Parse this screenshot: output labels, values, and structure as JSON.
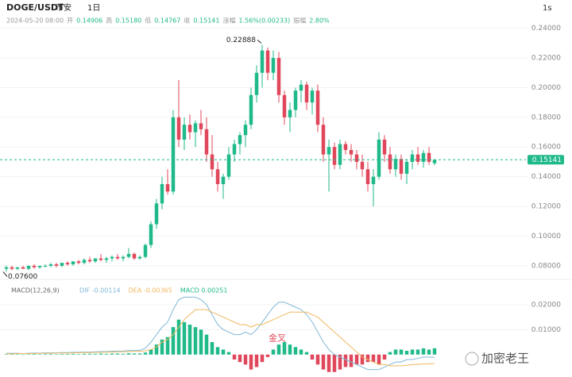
{
  "header": {
    "symbol": "DOGE/USDT",
    "exchange": "币安",
    "interval": "1日",
    "interval_button": "1s",
    "info": [
      "2024-05-20 08:00",
      "开",
      "0.14906",
      "高",
      "0.15180",
      "低",
      "0.14767",
      "收",
      "0.15141",
      "涨幅",
      "1.56%(0.00233)",
      "振幅",
      "2.80%"
    ]
  },
  "watermark": "加密老王",
  "chart_data": [
    {
      "type": "candlestick",
      "up_color": "#1fb98a",
      "down_color": "#e0475b",
      "ylim": [
        0.073,
        0.251
      ],
      "yticks": [
        {
          "value": 0.24,
          "label": "0.24000"
        },
        {
          "value": 0.22,
          "label": "0.22000"
        },
        {
          "value": 0.2,
          "label": "0.20000"
        },
        {
          "value": 0.18,
          "label": "0.18000"
        },
        {
          "value": 0.16,
          "label": "0.16000"
        },
        {
          "value": 0.14,
          "label": "0.14000"
        },
        {
          "value": 0.12,
          "label": "0.12000"
        },
        {
          "value": 0.1,
          "label": "0.10000"
        },
        {
          "value": 0.08,
          "label": "0.08000"
        }
      ],
      "last_price": {
        "value": 0.15141,
        "label": "0.15141"
      },
      "low_label": {
        "value": 0.076,
        "label": "0.07600"
      },
      "ohlc": [
        [
          0.078,
          0.08,
          0.076,
          0.079
        ],
        [
          0.079,
          0.08,
          0.077,
          0.078
        ],
        [
          0.078,
          0.079,
          0.077,
          0.079
        ],
        [
          0.079,
          0.08,
          0.078,
          0.078
        ],
        [
          0.078,
          0.08,
          0.077,
          0.08
        ],
        [
          0.08,
          0.081,
          0.078,
          0.079
        ],
        [
          0.079,
          0.08,
          0.078,
          0.08
        ],
        [
          0.08,
          0.081,
          0.079,
          0.08
        ],
        [
          0.08,
          0.082,
          0.079,
          0.081
        ],
        [
          0.081,
          0.082,
          0.079,
          0.08
        ],
        [
          0.08,
          0.082,
          0.079,
          0.082
        ],
        [
          0.082,
          0.083,
          0.08,
          0.081
        ],
        [
          0.081,
          0.083,
          0.08,
          0.083
        ],
        [
          0.083,
          0.084,
          0.081,
          0.082
        ],
        [
          0.082,
          0.085,
          0.081,
          0.084
        ],
        [
          0.084,
          0.086,
          0.082,
          0.083
        ],
        [
          0.083,
          0.085,
          0.082,
          0.085
        ],
        [
          0.085,
          0.088,
          0.083,
          0.084
        ],
        [
          0.084,
          0.086,
          0.082,
          0.085
        ],
        [
          0.085,
          0.087,
          0.083,
          0.086
        ],
        [
          0.086,
          0.088,
          0.084,
          0.085
        ],
        [
          0.085,
          0.087,
          0.083,
          0.086
        ],
        [
          0.086,
          0.092,
          0.085,
          0.088
        ],
        [
          0.088,
          0.089,
          0.084,
          0.085
        ],
        [
          0.085,
          0.087,
          0.084,
          0.086
        ],
        [
          0.086,
          0.095,
          0.085,
          0.094
        ],
        [
          0.094,
          0.11,
          0.092,
          0.108
        ],
        [
          0.108,
          0.125,
          0.105,
          0.122
        ],
        [
          0.122,
          0.14,
          0.118,
          0.135
        ],
        [
          0.135,
          0.145,
          0.128,
          0.13
        ],
        [
          0.13,
          0.185,
          0.128,
          0.18
        ],
        [
          0.18,
          0.205,
          0.16,
          0.165
        ],
        [
          0.165,
          0.18,
          0.158,
          0.175
        ],
        [
          0.175,
          0.182,
          0.165,
          0.17
        ],
        [
          0.17,
          0.178,
          0.16,
          0.176
        ],
        [
          0.176,
          0.185,
          0.168,
          0.172
        ],
        [
          0.172,
          0.18,
          0.15,
          0.155
        ],
        [
          0.155,
          0.168,
          0.14,
          0.145
        ],
        [
          0.145,
          0.15,
          0.13,
          0.135
        ],
        [
          0.135,
          0.142,
          0.125,
          0.14
        ],
        [
          0.14,
          0.16,
          0.138,
          0.155
        ],
        [
          0.155,
          0.165,
          0.15,
          0.162
        ],
        [
          0.162,
          0.17,
          0.155,
          0.168
        ],
        [
          0.168,
          0.178,
          0.16,
          0.175
        ],
        [
          0.175,
          0.2,
          0.172,
          0.195
        ],
        [
          0.195,
          0.215,
          0.19,
          0.21
        ],
        [
          0.21,
          0.22888,
          0.2,
          0.225
        ],
        [
          0.225,
          0.227,
          0.205,
          0.21
        ],
        [
          0.21,
          0.225,
          0.205,
          0.22
        ],
        [
          0.22,
          0.224,
          0.19,
          0.195
        ],
        [
          0.195,
          0.198,
          0.175,
          0.18
        ],
        [
          0.18,
          0.19,
          0.17,
          0.185
        ],
        [
          0.185,
          0.2,
          0.18,
          0.198
        ],
        [
          0.198,
          0.205,
          0.19,
          0.202
        ],
        [
          0.202,
          0.204,
          0.185,
          0.19
        ],
        [
          0.19,
          0.2,
          0.182,
          0.198
        ],
        [
          0.198,
          0.202,
          0.17,
          0.175
        ],
        [
          0.175,
          0.18,
          0.15,
          0.155
        ],
        [
          0.155,
          0.165,
          0.13,
          0.16
        ],
        [
          0.16,
          0.163,
          0.145,
          0.148
        ],
        [
          0.148,
          0.165,
          0.145,
          0.162
        ],
        [
          0.162,
          0.164,
          0.155,
          0.158
        ],
        [
          0.158,
          0.162,
          0.15,
          0.155
        ],
        [
          0.155,
          0.158,
          0.145,
          0.15
        ],
        [
          0.15,
          0.155,
          0.14,
          0.145
        ],
        [
          0.145,
          0.15,
          0.13,
          0.135
        ],
        [
          0.135,
          0.145,
          0.12,
          0.14
        ],
        [
          0.14,
          0.17,
          0.138,
          0.165
        ],
        [
          0.165,
          0.168,
          0.15,
          0.155
        ],
        [
          0.155,
          0.16,
          0.142,
          0.145
        ],
        [
          0.145,
          0.155,
          0.14,
          0.152
        ],
        [
          0.152,
          0.155,
          0.138,
          0.142
        ],
        [
          0.142,
          0.152,
          0.135,
          0.15
        ],
        [
          0.15,
          0.158,
          0.145,
          0.155
        ],
        [
          0.155,
          0.16,
          0.148,
          0.15
        ],
        [
          0.15,
          0.158,
          0.146,
          0.156
        ],
        [
          0.156,
          0.16,
          0.148,
          0.15
        ],
        [
          0.14906,
          0.1518,
          0.14767,
          0.15141
        ]
      ]
    },
    {
      "type": "macd",
      "title": "MACD(12,26,9)",
      "annotation": "金叉",
      "annotation_index": 48,
      "ylim": [
        -0.009,
        0.026
      ],
      "yticks": [
        {
          "value": 0.02,
          "label": "0.02000"
        },
        {
          "value": 0.01,
          "label": "0.01000"
        }
      ],
      "up_color": "#1fb98a",
      "down_color": "#e0475b",
      "histogram": {
        "name": "MACD 0.00251",
        "values": [
          0.0002,
          0.0001,
          0.0001,
          0,
          0.0001,
          0.0002,
          0.0001,
          0.0002,
          0.0002,
          0.0001,
          0.0002,
          0.0002,
          0.0003,
          0.0002,
          0.0003,
          0.0003,
          0.0003,
          0.0004,
          0.0003,
          0.0004,
          0.0004,
          0.0003,
          0.0005,
          0.0004,
          0.0004,
          0.0008,
          0.002,
          0.004,
          0.006,
          0.007,
          0.011,
          0.014,
          0.013,
          0.012,
          0.011,
          0.01,
          0.008,
          0.005,
          0.003,
          0.002,
          0.001,
          -0.002,
          -0.003,
          -0.004,
          -0.006,
          -0.005,
          -0.003,
          -0.001,
          0.002,
          0.004,
          0.005,
          0.004,
          0.003,
          0.002,
          0.001,
          -0.002,
          -0.004,
          -0.006,
          -0.007,
          -0.007,
          -0.006,
          -0.005,
          -0.005,
          -0.004,
          -0.004,
          -0.003,
          -0.003,
          -0.004,
          -0.002,
          0.001,
          0.002,
          0.002,
          0.0015,
          0.002,
          0.002,
          0.0025,
          0.002,
          0.00251
        ]
      },
      "series": [
        {
          "name": "DIF -0.00114",
          "color": "#7fb8d8",
          "values": [
            0.0005,
            0.0005,
            0.0005,
            0.0004,
            0.0005,
            0.0006,
            0.0006,
            0.0007,
            0.0007,
            0.0007,
            0.0008,
            0.0008,
            0.0009,
            0.0009,
            0.001,
            0.001,
            0.0011,
            0.0012,
            0.0012,
            0.0013,
            0.0014,
            0.0014,
            0.0016,
            0.0016,
            0.0017,
            0.0025,
            0.005,
            0.008,
            0.011,
            0.013,
            0.018,
            0.022,
            0.023,
            0.023,
            0.023,
            0.022,
            0.02,
            0.016,
            0.012,
            0.01,
            0.009,
            0.008,
            0.008,
            0.009,
            0.008,
            0.01,
            0.013,
            0.016,
            0.019,
            0.021,
            0.021,
            0.02,
            0.019,
            0.018,
            0.016,
            0.013,
            0.009,
            0.005,
            0.002,
            0,
            -0.001,
            -0.002,
            -0.003,
            -0.004,
            -0.005,
            -0.006,
            -0.006,
            -0.006,
            -0.005,
            -0.004,
            -0.003,
            -0.003,
            -0.002,
            -0.002,
            -0.0015,
            -0.001,
            -0.001,
            -0.00114
          ]
        },
        {
          "name": "DEA -0.00365",
          "color": "#f0b860",
          "values": [
            0.0003,
            0.0003,
            0.0004,
            0.0004,
            0.0004,
            0.0004,
            0.0005,
            0.0005,
            0.0005,
            0.0006,
            0.0006,
            0.0006,
            0.0007,
            0.0007,
            0.0008,
            0.0008,
            0.0009,
            0.0009,
            0.001,
            0.001,
            0.0011,
            0.0011,
            0.0012,
            0.0013,
            0.0013,
            0.0015,
            0.002,
            0.003,
            0.005,
            0.006,
            0.008,
            0.011,
            0.014,
            0.016,
            0.018,
            0.018,
            0.018,
            0.017,
            0.016,
            0.015,
            0.014,
            0.013,
            0.012,
            0.012,
            0.011,
            0.012,
            0.012,
            0.013,
            0.014,
            0.015,
            0.016,
            0.017,
            0.017,
            0.017,
            0.017,
            0.016,
            0.015,
            0.013,
            0.011,
            0.009,
            0.007,
            0.005,
            0.003,
            0.001,
            -0.001,
            -0.002,
            -0.003,
            -0.004,
            -0.004,
            -0.0045,
            -0.0045,
            -0.0045,
            -0.0043,
            -0.004,
            -0.0039,
            -0.0038,
            -0.0037,
            -0.00365
          ]
        }
      ]
    }
  ]
}
